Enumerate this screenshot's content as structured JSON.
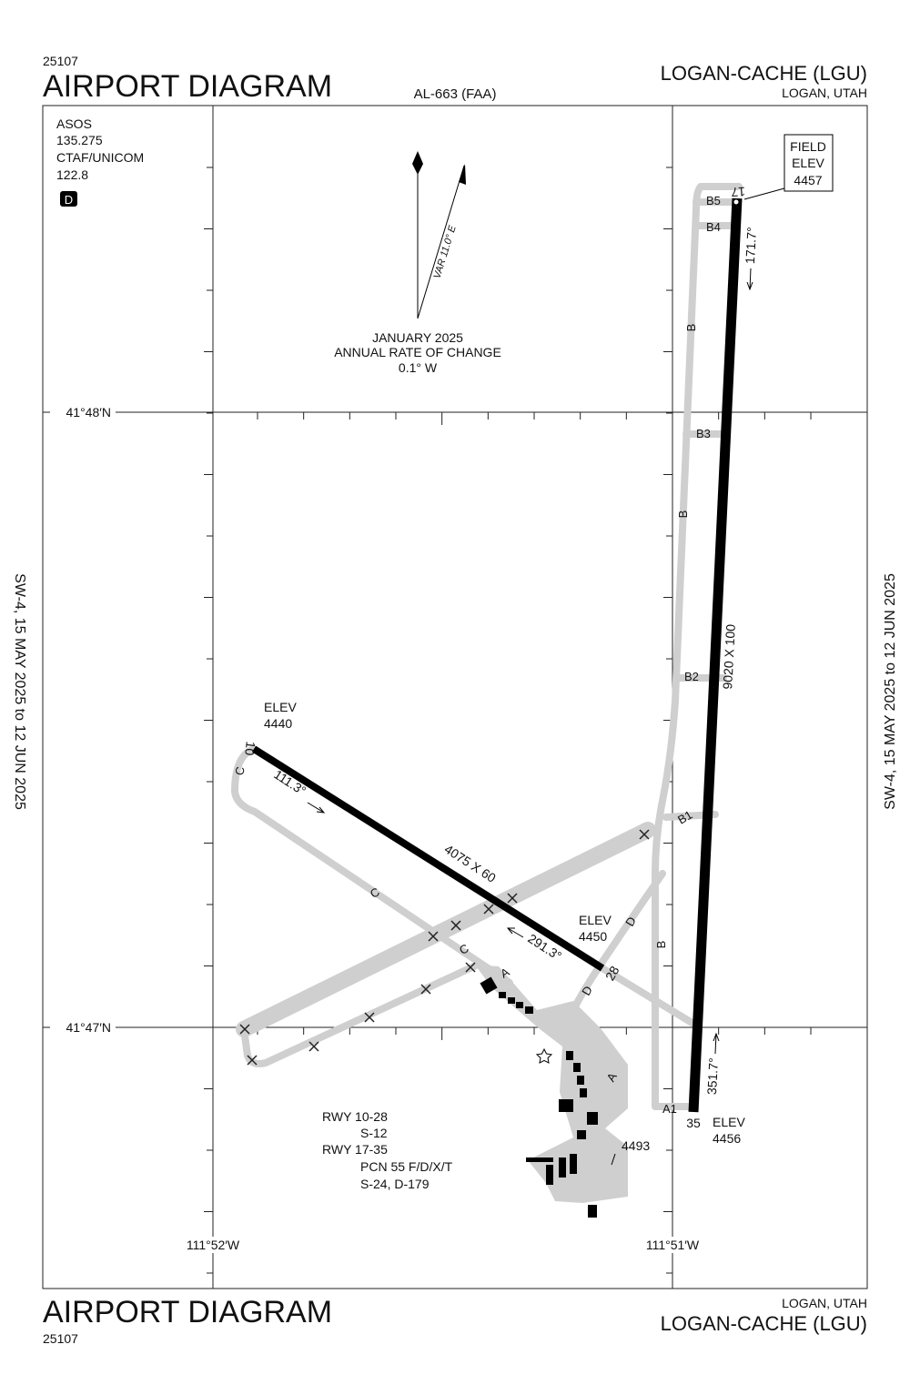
{
  "header": {
    "id": "25107",
    "title": "AIRPORT DIAGRAM",
    "chart_ref": "AL-663 (FAA)",
    "airport": "LOGAN-CACHE (LGU)",
    "city": "LOGAN, UTAH"
  },
  "footer": {
    "city": "LOGAN, UTAH",
    "airport": "LOGAN-CACHE (LGU)",
    "title": "AIRPORT DIAGRAM",
    "id": "25107"
  },
  "effective_dates": {
    "left": "SW-4,  15 MAY 2025  to  12 JUN 2025",
    "right": "SW-4,  15 MAY 2025  to  12 JUN 2025"
  },
  "communications": {
    "asos_label": "ASOS",
    "asos_freq": "135.275",
    "ctaf_label": "CTAF/UNICOM",
    "ctaf_freq": "122.8",
    "airspace": "D"
  },
  "magnetic_variation": {
    "label": "VAR 11.0° E",
    "date": "JANUARY 2025",
    "rate_label": "ANNUAL RATE OF CHANGE",
    "rate": "0.1° W"
  },
  "field_elevation": {
    "lines": [
      "FIELD",
      "ELEV"
    ],
    "value": "4457"
  },
  "coordinates": {
    "lat": [
      "41°48′N",
      "41°47′N"
    ],
    "lon": [
      "111°52′W",
      "111°51′W"
    ]
  },
  "runways": [
    {
      "ends": [
        "17",
        "35"
      ],
      "dimensions": "9020 X 100",
      "headings": [
        "171.7°",
        "351.7°"
      ]
    },
    {
      "ends": [
        "10",
        "28"
      ],
      "dimensions": "4075 X 60",
      "headings": [
        "111.3°",
        "291.3°"
      ]
    }
  ],
  "elevations": [
    {
      "label": "ELEV",
      "value": "4440"
    },
    {
      "label": "ELEV",
      "value": "4450"
    },
    {
      "label": "ELEV",
      "value": "4456"
    },
    {
      "value": "4493"
    }
  ],
  "taxiways": [
    "B5",
    "B4",
    "B",
    "B3",
    "B",
    "B2",
    "B1",
    "B",
    "A1",
    "A",
    "A",
    "C",
    "C",
    "C",
    "D",
    "D"
  ],
  "notes": [
    "RWY 10-28",
    "S-12",
    "RWY 17-35",
    "PCN 55 F/D/X/T",
    "S-24, D-179"
  ]
}
